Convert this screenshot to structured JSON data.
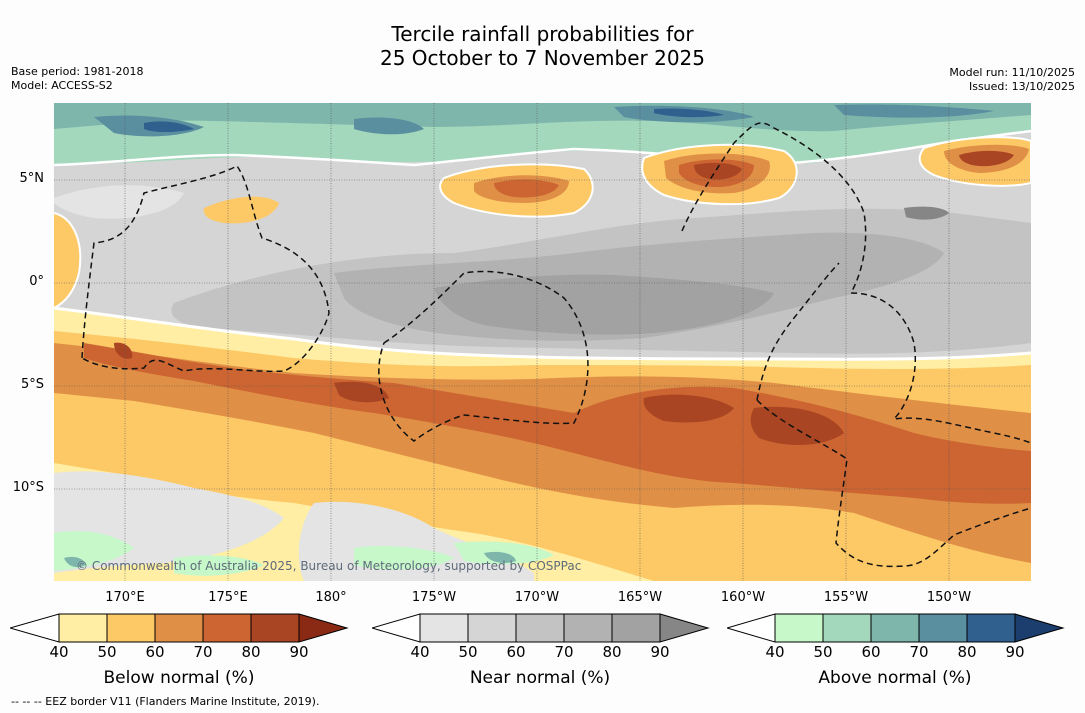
{
  "title_line1": "Tercile rainfall probabilities for",
  "title_line2": "25 October to 7 November 2025",
  "meta_left": [
    "Base period: 1981-2018",
    "Model: ACCESS-S2"
  ],
  "meta_right": [
    "Model run: 11/10/2025",
    "Issued: 13/10/2025"
  ],
  "map": {
    "lat_labels": [
      "5°N",
      "0°",
      "5°S",
      "10°S"
    ],
    "lon_labels": [
      "170°E",
      "175°E",
      "180°",
      "175°W",
      "170°W",
      "165°W",
      "160°W",
      "155°W",
      "150°W"
    ],
    "copyright": "© Commonwealth of Australia 2025, Bureau of Meteorology, supported by COSPPac",
    "colors": {
      "below": [
        "#ffeea3",
        "#fdc966",
        "#e09046",
        "#cc6532",
        "#aa4524",
        "#8a2a15"
      ],
      "near": [
        "#e4e4e4",
        "#d5d5d5",
        "#c3c3c3",
        "#b2b2b2",
        "#a2a2a2",
        "#868686"
      ],
      "above": [
        "#c6f8ca",
        "#a3d8bd",
        "#7fb6ac",
        "#5a8fa0",
        "#30608e",
        "#1c3e6e"
      ]
    }
  },
  "colorbars": [
    {
      "name": "below",
      "label": "Below normal (%)",
      "ticks": [
        "40",
        "50",
        "60",
        "70",
        "80",
        "90"
      ]
    },
    {
      "name": "near",
      "label": "Near normal (%)",
      "ticks": [
        "40",
        "50",
        "60",
        "70",
        "80",
        "90"
      ]
    },
    {
      "name": "above",
      "label": "Above normal (%)",
      "ticks": [
        "40",
        "50",
        "60",
        "70",
        "80",
        "90"
      ]
    }
  ],
  "footer": "--  --  -- EEZ border V11 (Flanders Marine Institute, 2019)."
}
